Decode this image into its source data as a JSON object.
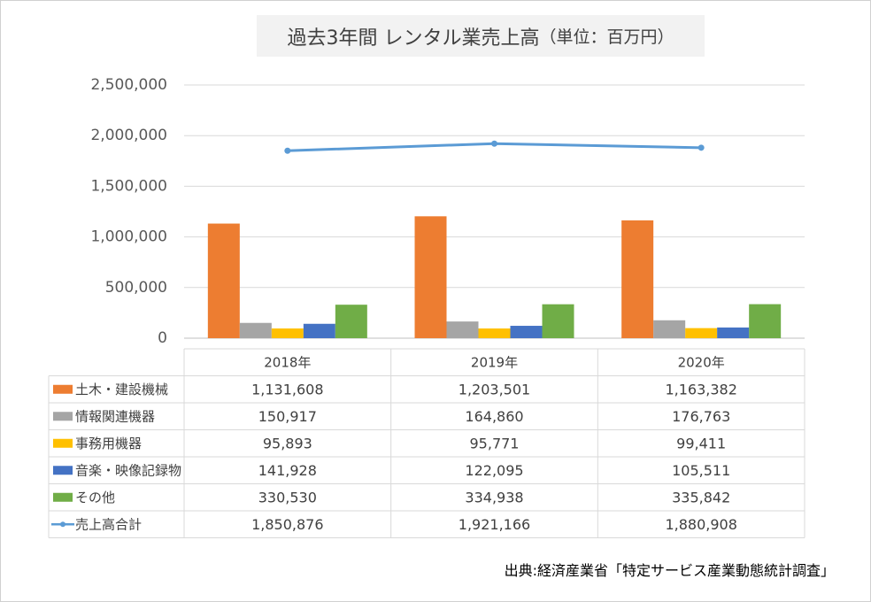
{
  "chart_data": {
    "type": "bar",
    "title": "過去3年間 レンタル業売上高",
    "title_unit": "（単位：百万円）",
    "categories": [
      "2018年",
      "2019年",
      "2020年"
    ],
    "ylim": [
      0,
      2500000
    ],
    "yticks": [
      0,
      500000,
      1000000,
      1500000,
      2000000,
      2500000
    ],
    "ytick_labels": [
      "0",
      "500,000",
      "1,000,000",
      "1,500,000",
      "2,000,000",
      "2,500,000"
    ],
    "grid": true,
    "legend": "data-table",
    "series": [
      {
        "name": "土木・建設機械",
        "type": "bar",
        "color": "#ED7D31",
        "values": [
          1131608,
          1203501,
          1163382
        ],
        "labels": [
          "1,131,608",
          "1,203,501",
          "1,163,382"
        ]
      },
      {
        "name": "情報関連機器",
        "type": "bar",
        "color": "#A5A5A5",
        "values": [
          150917,
          164860,
          176763
        ],
        "labels": [
          "150,917",
          "164,860",
          "176,763"
        ]
      },
      {
        "name": "事務用機器",
        "type": "bar",
        "color": "#FFC000",
        "values": [
          95893,
          95771,
          99411
        ],
        "labels": [
          "95,893",
          "95,771",
          "99,411"
        ]
      },
      {
        "name": "音楽・映像記録物",
        "type": "bar",
        "color": "#4472C4",
        "values": [
          141928,
          122095,
          105511
        ],
        "labels": [
          "141,928",
          "122,095",
          "105,511"
        ]
      },
      {
        "name": "その他",
        "type": "bar",
        "color": "#70AD47",
        "values": [
          330530,
          334938,
          335842
        ],
        "labels": [
          "330,530",
          "334,938",
          "335,842"
        ]
      },
      {
        "name": "売上高合計",
        "type": "line",
        "color": "#5B9BD5",
        "values": [
          1850876,
          1921166,
          1880908
        ],
        "labels": [
          "1,850,876",
          "1,921,166",
          "1,880,908"
        ]
      }
    ]
  },
  "source_note": "出典:経済産業省「特定サービス産業動態統計調査」"
}
